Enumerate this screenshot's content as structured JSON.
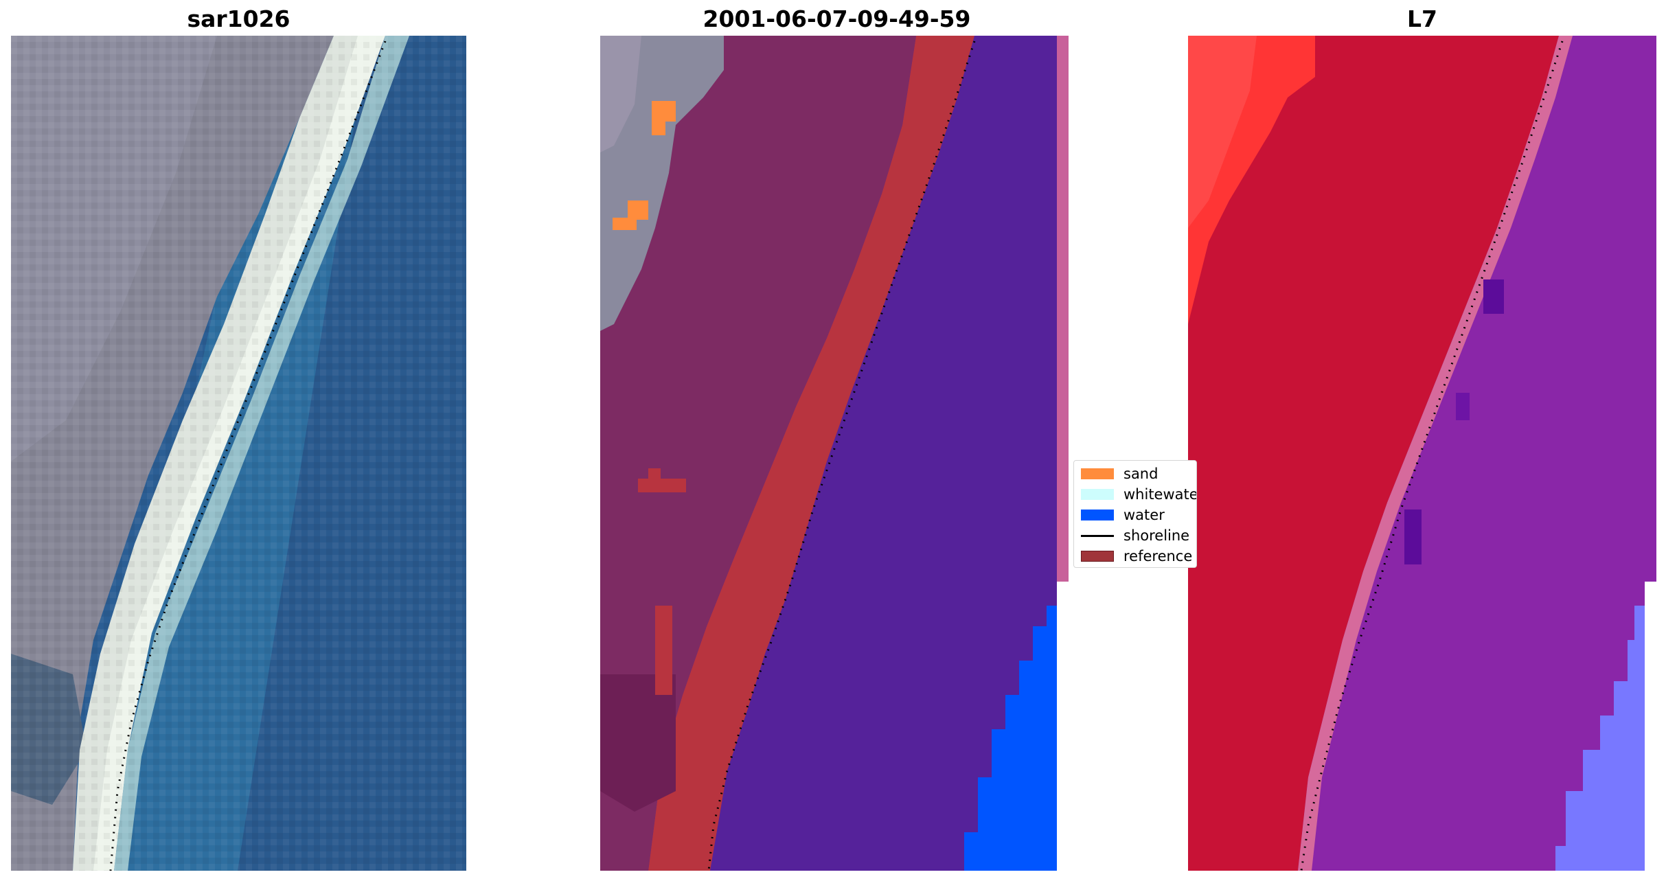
{
  "panels": {
    "left_title": "sar1026",
    "middle_title": "2001-06-07-09-49-59",
    "right_title": "L7"
  },
  "legend": {
    "items": [
      {
        "label": "sand",
        "color": "#ff8c3c"
      },
      {
        "label": "whitewater",
        "color": "#cdfdfd"
      },
      {
        "label": "water",
        "color": "#0055ff"
      },
      {
        "label": "shoreline",
        "color": "#000000"
      },
      {
        "label": "reference",
        "color": "#a0353a"
      }
    ]
  },
  "colors": {
    "land_gray": "#8a8a9a",
    "sand_white": "#e6eee6",
    "ocean_blue": "#2c6ca0",
    "class_land": "#7d2b63",
    "class_ref": "#b8343f",
    "class_water": "#55229a",
    "class_water_bright": "#0055ff",
    "class_sand": "#ff8c3c",
    "l7_red": "#c81236",
    "l7_bright_red": "#ff3030",
    "l7_purple": "#8a26a8",
    "l7_periwinkle": "#7878ff"
  }
}
